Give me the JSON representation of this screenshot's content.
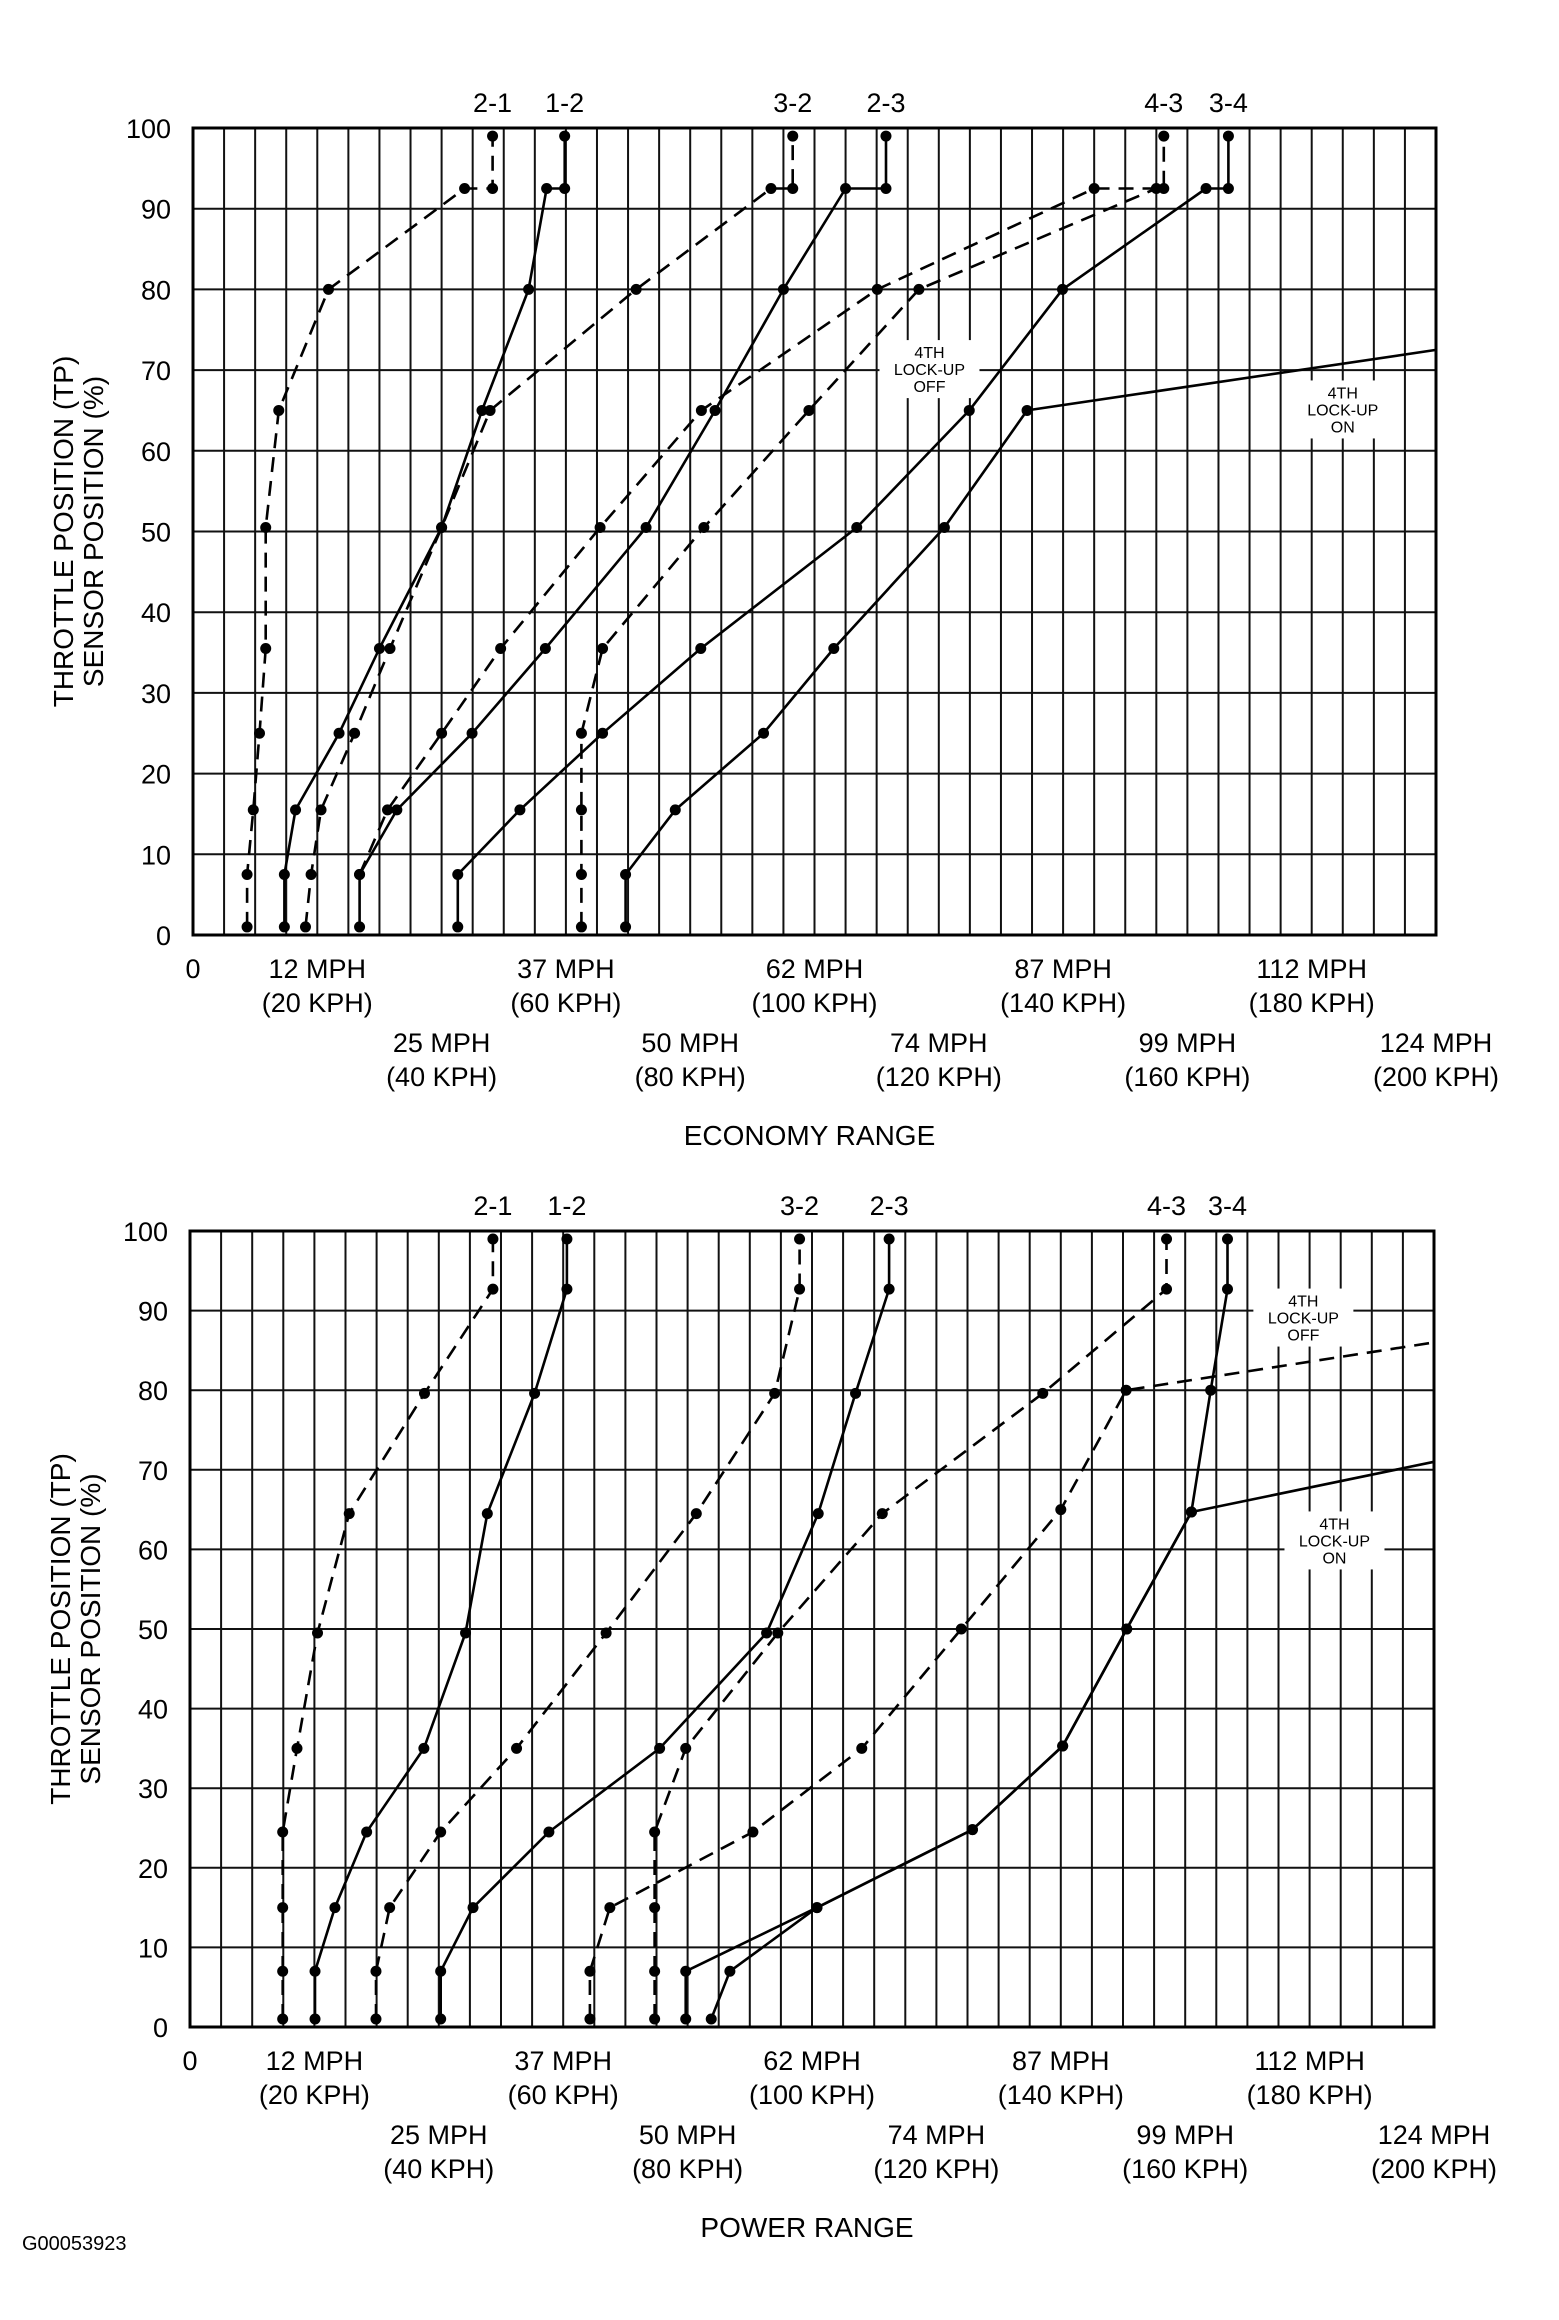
{
  "figure_code": "G00053923",
  "chart_data": [
    {
      "type": "line",
      "title": "ECONOMY RANGE",
      "ylabel_lines": [
        "THROTTLE POSITION (TP)",
        "SENSOR POSITION (%)"
      ],
      "xlabel": "",
      "x_units": "KPH",
      "xlim": [
        0,
        200
      ],
      "ylim": [
        0,
        100
      ],
      "grid": true,
      "y_ticks": [
        "0",
        "10",
        "20",
        "30",
        "40",
        "50",
        "60",
        "70",
        "80",
        "90",
        "100"
      ],
      "x_ticks": [
        {
          "value": 0,
          "mph": "0",
          "kph": ""
        },
        {
          "value": 20,
          "mph": "12 MPH",
          "kph": "(20 KPH)"
        },
        {
          "value": 40,
          "mph": "25 MPH",
          "kph": "(40 KPH)"
        },
        {
          "value": 60,
          "mph": "37 MPH",
          "kph": "(60 KPH)"
        },
        {
          "value": 80,
          "mph": "50 MPH",
          "kph": "(80 KPH)"
        },
        {
          "value": 100,
          "mph": "62 MPH",
          "kph": "(100 KPH)"
        },
        {
          "value": 120,
          "mph": "74 MPH",
          "kph": "(120 KPH)"
        },
        {
          "value": 140,
          "mph": "87 MPH",
          "kph": "(140 KPH)"
        },
        {
          "value": 160,
          "mph": "99 MPH",
          "kph": "(160 KPH)"
        },
        {
          "value": 180,
          "mph": "112 MPH",
          "kph": "(180 KPH)"
        },
        {
          "value": 200,
          "mph": "124 MPH",
          "kph": "(200 KPH)"
        }
      ],
      "series": [
        {
          "name": "2-1",
          "label": "2-1",
          "style": "dashed",
          "points": [
            [
              8.7,
              1
            ],
            [
              8.7,
              7.5
            ],
            [
              9.7,
              15.5
            ],
            [
              10.7,
              25
            ],
            [
              11.7,
              35.5
            ],
            [
              11.7,
              50.5
            ],
            [
              13.8,
              65
            ],
            [
              21.8,
              80
            ],
            [
              43.7,
              92.5
            ],
            [
              48.2,
              92.5
            ],
            [
              48.2,
              99
            ]
          ]
        },
        {
          "name": "1-2",
          "label": "1-2",
          "style": "solid",
          "points": [
            [
              14.7,
              1
            ],
            [
              14.7,
              7.5
            ],
            [
              16.5,
              15.5
            ],
            [
              23.5,
              25
            ],
            [
              30,
              35.5
            ],
            [
              40,
              50.5
            ],
            [
              46.5,
              65
            ],
            [
              54,
              80
            ],
            [
              56.9,
              92.5
            ],
            [
              59.8,
              92.5
            ],
            [
              59.8,
              99
            ]
          ]
        },
        {
          "name": "3-2",
          "label": "3-2",
          "style": "dashed",
          "points": [
            [
              18.1,
              1
            ],
            [
              19,
              7.5
            ],
            [
              20.6,
              15.5
            ],
            [
              26,
              25
            ],
            [
              31.7,
              35.5
            ],
            [
              40,
              50.5
            ],
            [
              47.8,
              65
            ],
            [
              71.3,
              80
            ],
            [
              93,
              92.5
            ],
            [
              96.5,
              92.5
            ],
            [
              96.5,
              99
            ]
          ]
        },
        {
          "name": "2-3",
          "label": "2-3",
          "style": "solid",
          "points": [
            [
              26.8,
              1
            ],
            [
              26.8,
              7.5
            ],
            [
              32.8,
              15.5
            ],
            [
              44.9,
              25
            ],
            [
              56.7,
              35.5
            ],
            [
              72.9,
              50.5
            ],
            [
              84,
              65
            ],
            [
              95,
              80
            ],
            [
              105,
              92.5
            ],
            [
              111.5,
              92.5
            ],
            [
              111.5,
              99
            ]
          ]
        },
        {
          "name": "4-3",
          "label": "4-3",
          "style": "dashed",
          "points": [
            [
              26.8,
              7.5
            ],
            [
              31.3,
              15.5
            ],
            [
              40,
              25
            ],
            [
              49.5,
              35.5
            ],
            [
              65.5,
              50.5
            ],
            [
              81.8,
              65
            ],
            [
              110.1,
              80
            ],
            [
              145,
              92.5
            ],
            [
              156.2,
              92.5
            ],
            [
              156.2,
              99
            ]
          ]
        },
        {
          "name": "3-4",
          "label": "3-4",
          "style": "solid",
          "points": [
            [
              42.6,
              1
            ],
            [
              42.6,
              7.5
            ],
            [
              52.6,
              15.5
            ],
            [
              65.9,
              25
            ],
            [
              81.7,
              35.5
            ],
            [
              106.8,
              50.5
            ],
            [
              124.9,
              65
            ],
            [
              139.9,
              80
            ],
            [
              163,
              92.5
            ],
            [
              166.6,
              92.5
            ],
            [
              166.6,
              99
            ]
          ]
        },
        {
          "name": "4th lock-up off",
          "label": "",
          "style": "dashed",
          "points": [
            [
              62.5,
              1
            ],
            [
              62.5,
              7.5
            ],
            [
              62.5,
              15.5
            ],
            [
              62.5,
              25
            ],
            [
              65.9,
              35.5
            ],
            [
              82.2,
              50.5
            ],
            [
              99.1,
              65
            ],
            [
              116.8,
              80
            ],
            [
              155,
              92.5
            ]
          ]
        },
        {
          "name": "4th lock-up on",
          "label": "",
          "style": "solid",
          "points": [
            [
              69.6,
              1
            ],
            [
              69.6,
              7.5
            ],
            [
              77.6,
              15.5
            ],
            [
              91.8,
              25
            ],
            [
              103.1,
              35.5
            ],
            [
              120.9,
              50.5
            ],
            [
              134.2,
              65
            ],
            [
              200,
              72.5
            ]
          ],
          "dots": 7
        }
      ],
      "annotations": [
        {
          "lines": [
            "4TH",
            "LOCK-UP",
            "OFF"
          ],
          "x": 118.5,
          "y": 70
        },
        {
          "lines": [
            "4TH",
            "LOCK-UP",
            "ON"
          ],
          "x": 185,
          "y": 65
        }
      ]
    },
    {
      "type": "line",
      "title": "POWER RANGE",
      "ylabel_lines": [
        "THROTTLE POSITION (TP)",
        "SENSOR POSITION (%)"
      ],
      "xlabel": "",
      "x_units": "KPH",
      "xlim": [
        0,
        200
      ],
      "ylim": [
        0,
        100
      ],
      "grid": true,
      "y_ticks": [
        "0",
        "10",
        "20",
        "30",
        "40",
        "50",
        "60",
        "70",
        "80",
        "90",
        "100"
      ],
      "x_ticks": [
        {
          "value": 0,
          "mph": "0",
          "kph": ""
        },
        {
          "value": 20,
          "mph": "12 MPH",
          "kph": "(20 KPH)"
        },
        {
          "value": 40,
          "mph": "25 MPH",
          "kph": "(40 KPH)"
        },
        {
          "value": 60,
          "mph": "37 MPH",
          "kph": "(60 KPH)"
        },
        {
          "value": 80,
          "mph": "50 MPH",
          "kph": "(80 KPH)"
        },
        {
          "value": 100,
          "mph": "62 MPH",
          "kph": "(100 KPH)"
        },
        {
          "value": 120,
          "mph": "74 MPH",
          "kph": "(120 KPH)"
        },
        {
          "value": 140,
          "mph": "87 MPH",
          "kph": "(140 KPH)"
        },
        {
          "value": 160,
          "mph": "99 MPH",
          "kph": "(160 KPH)"
        },
        {
          "value": 180,
          "mph": "112 MPH",
          "kph": "(180 KPH)"
        },
        {
          "value": 200,
          "mph": "124 MPH",
          "kph": "(200 KPH)"
        }
      ],
      "series": [
        {
          "name": "2-1",
          "label": "2-1",
          "style": "dashed",
          "points": [
            [
              14.9,
              1
            ],
            [
              14.9,
              7
            ],
            [
              14.9,
              15
            ],
            [
              14.9,
              24.5
            ],
            [
              17.2,
              35
            ],
            [
              20.5,
              49.5
            ],
            [
              25.6,
              64.5
            ],
            [
              37.7,
              79.6
            ],
            [
              48.7,
              92.7
            ],
            [
              48.7,
              99
            ]
          ]
        },
        {
          "name": "1-2",
          "label": "1-2",
          "style": "solid",
          "points": [
            [
              20.1,
              1
            ],
            [
              20.1,
              7
            ],
            [
              23.3,
              15
            ],
            [
              28.4,
              24.5
            ],
            [
              37.6,
              35
            ],
            [
              44.3,
              49.5
            ],
            [
              47.8,
              64.5
            ],
            [
              55.4,
              79.6
            ],
            [
              60.6,
              92.7
            ],
            [
              60.6,
              99
            ]
          ]
        },
        {
          "name": "3-2",
          "label": "3-2",
          "style": "dashed",
          "points": [
            [
              29.9,
              1
            ],
            [
              29.9,
              7
            ],
            [
              32.1,
              15
            ],
            [
              40.3,
              24.5
            ],
            [
              52.5,
              35
            ],
            [
              66.9,
              49.5
            ],
            [
              81.4,
              64.5
            ],
            [
              94,
              79.6
            ],
            [
              98,
              92.7
            ],
            [
              98,
              99
            ]
          ]
        },
        {
          "name": "2-3",
          "label": "2-3",
          "style": "solid",
          "points": [
            [
              40.3,
              1
            ],
            [
              40.3,
              7
            ],
            [
              45.5,
              15
            ],
            [
              57.7,
              24.5
            ],
            [
              75.5,
              35
            ],
            [
              92.7,
              49.5
            ],
            [
              101,
              64.5
            ],
            [
              107,
              79.6
            ],
            [
              112.4,
              92.7
            ],
            [
              112.4,
              99
            ]
          ]
        },
        {
          "name": "4-3",
          "label": "4-3",
          "style": "dashed",
          "points": [
            [
              74.7,
              1
            ],
            [
              74.7,
              7
            ],
            [
              74.7,
              15
            ],
            [
              74.7,
              24.5
            ],
            [
              79.7,
              35
            ],
            [
              94.5,
              49.5
            ],
            [
              111.3,
              64.5
            ],
            [
              137.1,
              79.6
            ],
            [
              157,
              92.7
            ],
            [
              157,
              99
            ]
          ]
        },
        {
          "name": "3-4",
          "label": "3-4",
          "style": "solid",
          "points": [
            [
              79.7,
              1
            ],
            [
              79.7,
              7
            ],
            [
              100.8,
              15
            ],
            [
              125.8,
              24.8
            ],
            [
              140.3,
              35.3
            ],
            [
              150.6,
              50
            ],
            [
              161,
              64.7
            ],
            [
              164.1,
              80
            ],
            [
              166.8,
              92.7
            ],
            [
              166.8,
              99
            ]
          ]
        },
        {
          "name": "4th lock-up off",
          "label": "",
          "style": "dashed",
          "points": [
            [
              64.3,
              1
            ],
            [
              64.3,
              7
            ],
            [
              67.5,
              15
            ],
            [
              90.5,
              24.5
            ],
            [
              108,
              35
            ],
            [
              124,
              50
            ],
            [
              140,
              65
            ],
            [
              150.5,
              80
            ],
            [
              200,
              86
            ]
          ],
          "dots": 8
        },
        {
          "name": "4th lock-up on",
          "label": "",
          "style": "solid",
          "points": [
            [
              83.8,
              1
            ],
            [
              86.8,
              7
            ],
            [
              100.8,
              15
            ],
            [
              125.8,
              24.8
            ],
            [
              140.3,
              35.3
            ],
            [
              150.6,
              50
            ],
            [
              161,
              64.7
            ],
            [
              200,
              71
            ]
          ],
          "dots": 7
        }
      ],
      "annotations": [
        {
          "lines": [
            "4TH",
            "LOCK-UP",
            "OFF"
          ],
          "x": 179,
          "y": 89
        },
        {
          "lines": [
            "4TH",
            "LOCK-UP",
            "ON"
          ],
          "x": 184,
          "y": 61
        }
      ]
    }
  ]
}
